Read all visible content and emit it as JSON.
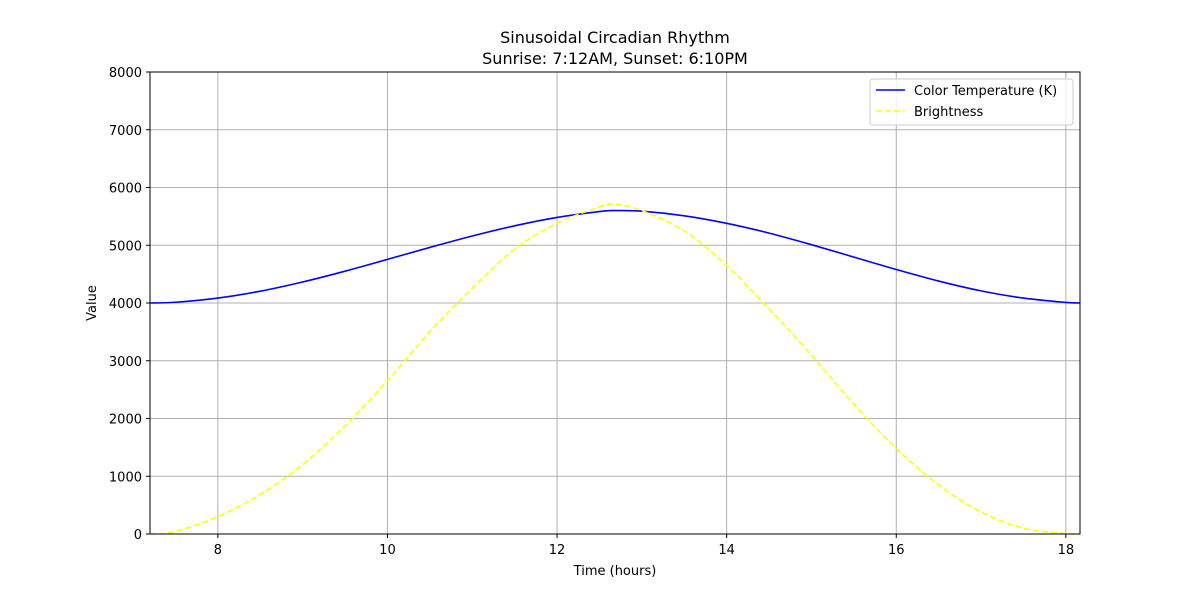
{
  "chart_data": {
    "type": "line",
    "title": "Sinusoidal Circadian Rhythm",
    "subtitle": "Sunrise: 7:12AM, Sunset: 6:10PM",
    "xlabel": "Time (hours)",
    "ylabel": "Value",
    "xlim": [
      7.2,
      18.1667
    ],
    "ylim": [
      0,
      8000
    ],
    "x_ticks": [
      8,
      10,
      12,
      14,
      16,
      18
    ],
    "y_ticks": [
      0,
      1000,
      2000,
      3000,
      4000,
      5000,
      6000,
      7000,
      8000
    ],
    "grid": true,
    "legend_position": "top-right",
    "series": [
      {
        "name": "Color Temperature (K)",
        "color": "#0000ff",
        "style": "solid",
        "x": [
          7.2,
          7.5,
          8.0,
          8.5,
          9.0,
          9.5,
          10.0,
          10.5,
          11.0,
          11.5,
          12.0,
          12.5,
          12.68,
          13.0,
          13.5,
          14.0,
          14.5,
          15.0,
          15.5,
          16.0,
          16.5,
          17.0,
          17.5,
          18.0,
          18.1667
        ],
        "y": [
          4000,
          4013,
          4086,
          4205,
          4364,
          4551,
          4755,
          4962,
          5160,
          5337,
          5482,
          5584,
          5600,
          5590,
          5510,
          5380,
          5210,
          5010,
          4795,
          4580,
          4380,
          4210,
          4085,
          4010,
          4000
        ]
      },
      {
        "name": "Brightness",
        "color": "#ffff00",
        "style": "dashed",
        "x": [
          7.2,
          7.5,
          8.0,
          8.5,
          9.0,
          9.5,
          10.0,
          10.5,
          11.0,
          11.5,
          12.0,
          12.5,
          12.68,
          13.0,
          13.5,
          14.0,
          14.5,
          15.0,
          15.5,
          16.0,
          16.5,
          17.0,
          17.5,
          18.0,
          18.1667
        ],
        "y": [
          0,
          42,
          300,
          680,
          1200,
          1870,
          2650,
          3500,
          4250,
          4930,
          5380,
          5660,
          5710,
          5600,
          5250,
          4650,
          3900,
          3100,
          2250,
          1480,
          850,
          380,
          100,
          8,
          0
        ]
      }
    ]
  }
}
